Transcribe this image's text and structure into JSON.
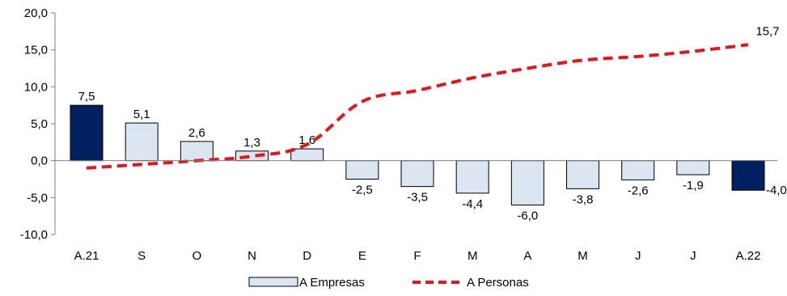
{
  "chart_data": {
    "type": "bar",
    "categories": [
      "A.21",
      "S",
      "O",
      "N",
      "D",
      "E",
      "F",
      "M",
      "A",
      "M",
      "J",
      "J",
      "A.22"
    ],
    "series": [
      {
        "name": "A Empresas",
        "type": "bar",
        "values": [
          7.5,
          5.1,
          2.6,
          1.3,
          1.6,
          -2.5,
          -3.5,
          -4.4,
          -6.0,
          -3.8,
          -2.6,
          -1.9,
          -4.0
        ],
        "value_labels": [
          "7,5",
          "5,1",
          "2,6",
          "1,3",
          "1,6",
          "-2,5",
          "-3,5",
          "-4,4",
          "-6,0",
          "-3,8",
          "-2,6",
          "-1,9",
          "-4,0"
        ],
        "fill_color": "#DCE6F2",
        "highlight_fill_color": "#002060",
        "highlight_categories": [
          0,
          12
        ]
      },
      {
        "name": "A Personas",
        "type": "line",
        "values": [
          -1.0,
          -0.5,
          0.0,
          0.6,
          2.2,
          8.0,
          9.5,
          11.2,
          12.5,
          13.6,
          14.1,
          14.8,
          15.7
        ],
        "end_label": "15,7",
        "color": "#E8141B",
        "line_style": "dashed"
      }
    ],
    "y_ticks": [
      "20,0",
      "15,0",
      "10,0",
      "5,0",
      "0,0",
      "-5,0",
      "-10,0"
    ],
    "y_tick_values": [
      20,
      15,
      10,
      5,
      0,
      -5,
      -10
    ],
    "ylim": [
      -10,
      20
    ],
    "title": "",
    "xlabel": "",
    "ylabel": "",
    "grid": false,
    "legend_position": "bottom-center"
  }
}
